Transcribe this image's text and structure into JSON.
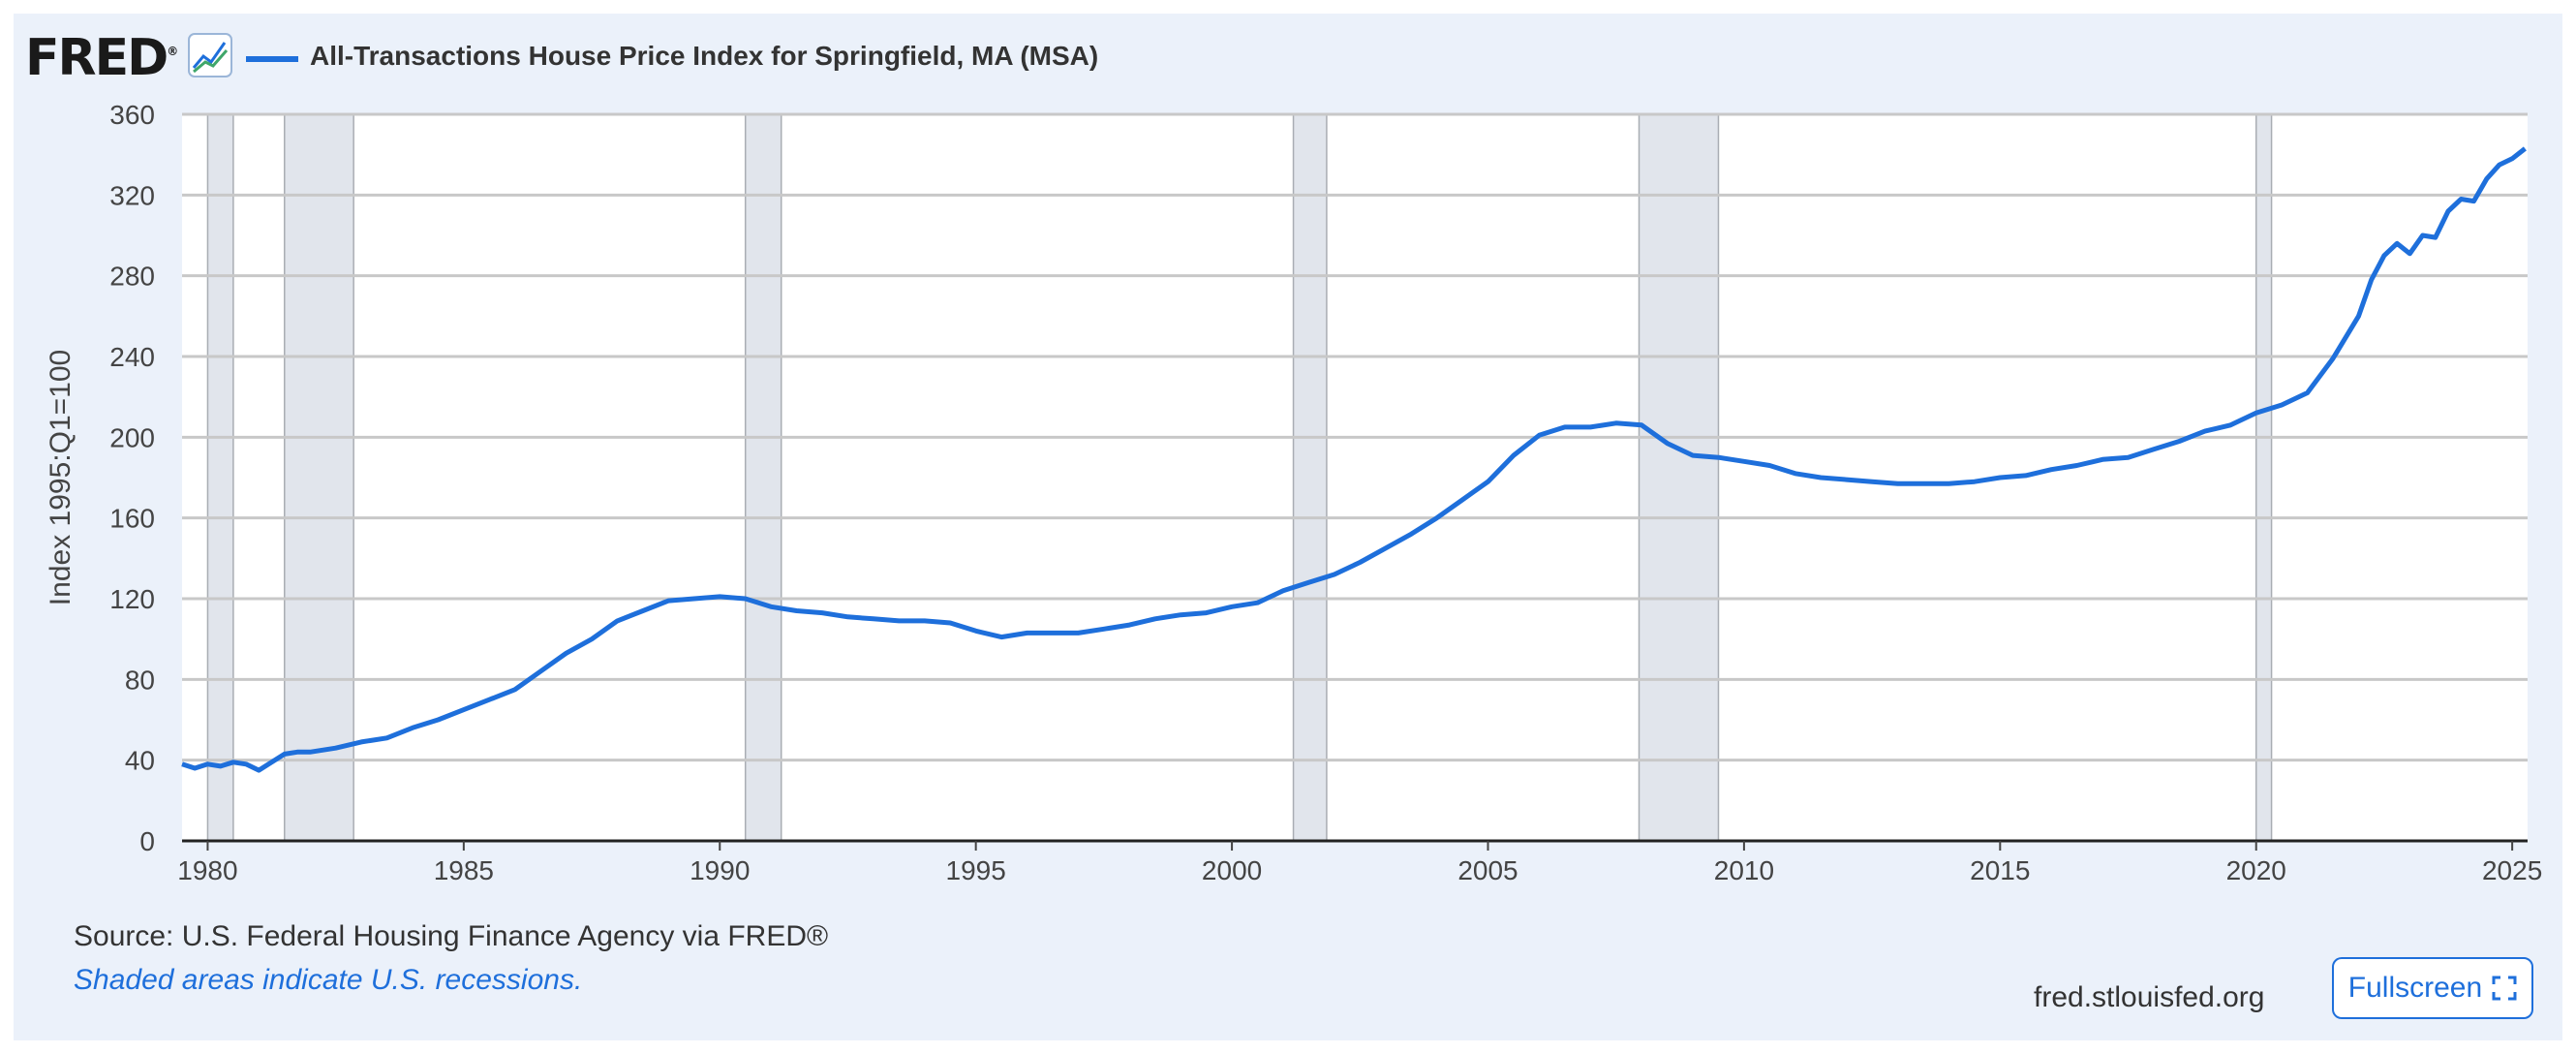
{
  "header": {
    "logo_text": "FRED",
    "logo_reg": "®",
    "series_title": "All-Transactions House Price Index for Springfield, MA (MSA)"
  },
  "footer": {
    "source": "Source: U.S. Federal Housing Finance Agency via FRED®",
    "note": "Shaded areas indicate U.S. recessions.",
    "site": "fred.stlouisfed.org",
    "fullscreen_label": "Fullscreen"
  },
  "colors": {
    "line": "#1e6fdb",
    "recession": "#e1e5ec",
    "background": "#ebf1fa"
  },
  "chart_data": {
    "type": "line",
    "title": "All-Transactions House Price Index for Springfield, MA (MSA)",
    "xlabel": "",
    "ylabel": "Index 1995:Q1=100",
    "xlim": [
      1979.5,
      2025.3
    ],
    "ylim": [
      0,
      360
    ],
    "xticks": [
      1980,
      1985,
      1990,
      1995,
      2000,
      2005,
      2010,
      2015,
      2020,
      2025
    ],
    "yticks": [
      0,
      40,
      80,
      120,
      160,
      200,
      240,
      280,
      320,
      360
    ],
    "grid": true,
    "recessions": [
      [
        1980.0,
        1980.5
      ],
      [
        1981.5,
        1982.85
      ],
      [
        1990.5,
        1991.2
      ],
      [
        2001.2,
        2001.85
      ],
      [
        2007.95,
        2009.5
      ],
      [
        2020.0,
        2020.3
      ]
    ],
    "series": [
      {
        "name": "All-Transactions House Price Index for Springfield, MA (MSA)",
        "x": [
          1979.5,
          1979.75,
          1980,
          1980.25,
          1980.5,
          1980.75,
          1981,
          1981.25,
          1981.5,
          1981.75,
          1982,
          1982.5,
          1983,
          1983.5,
          1984,
          1984.5,
          1985,
          1985.5,
          1986,
          1986.5,
          1987,
          1987.5,
          1988,
          1988.5,
          1989,
          1989.5,
          1990,
          1990.5,
          1991,
          1991.5,
          1992,
          1992.5,
          1993,
          1993.5,
          1994,
          1994.5,
          1995,
          1995.5,
          1996,
          1996.5,
          1997,
          1997.5,
          1998,
          1998.5,
          1999,
          1999.5,
          2000,
          2000.5,
          2001,
          2001.5,
          2002,
          2002.5,
          2003,
          2003.5,
          2004,
          2004.5,
          2005,
          2005.5,
          2006,
          2006.5,
          2007,
          2007.5,
          2008,
          2008.5,
          2009,
          2009.5,
          2010,
          2010.5,
          2011,
          2011.5,
          2012,
          2012.5,
          2013,
          2013.5,
          2014,
          2014.5,
          2015,
          2015.5,
          2016,
          2016.5,
          2017,
          2017.5,
          2018,
          2018.5,
          2019,
          2019.5,
          2020,
          2020.5,
          2021,
          2021.5,
          2022,
          2022.25,
          2022.5,
          2022.75,
          2023,
          2023.25,
          2023.5,
          2023.75,
          2024,
          2024.25,
          2024.5,
          2024.75,
          2025,
          2025.25
        ],
        "values": [
          38,
          36,
          38,
          37,
          39,
          38,
          35,
          39,
          43,
          44,
          44,
          46,
          49,
          51,
          56,
          60,
          65,
          70,
          75,
          84,
          93,
          100,
          109,
          114,
          119,
          120,
          121,
          120,
          116,
          114,
          113,
          111,
          110,
          109,
          109,
          108,
          104,
          101,
          103,
          103,
          103,
          105,
          107,
          110,
          112,
          113,
          116,
          118,
          124,
          128,
          132,
          138,
          145,
          152,
          160,
          169,
          178,
          191,
          201,
          205,
          205,
          207,
          206,
          197,
          191,
          190,
          188,
          186,
          182,
          180,
          179,
          178,
          177,
          177,
          177,
          178,
          180,
          181,
          184,
          186,
          189,
          190,
          194,
          198,
          203,
          206,
          212,
          216,
          222,
          239,
          260,
          278,
          290,
          296,
          291,
          300,
          299,
          312,
          318,
          317,
          328,
          335,
          338,
          343
        ]
      }
    ]
  }
}
